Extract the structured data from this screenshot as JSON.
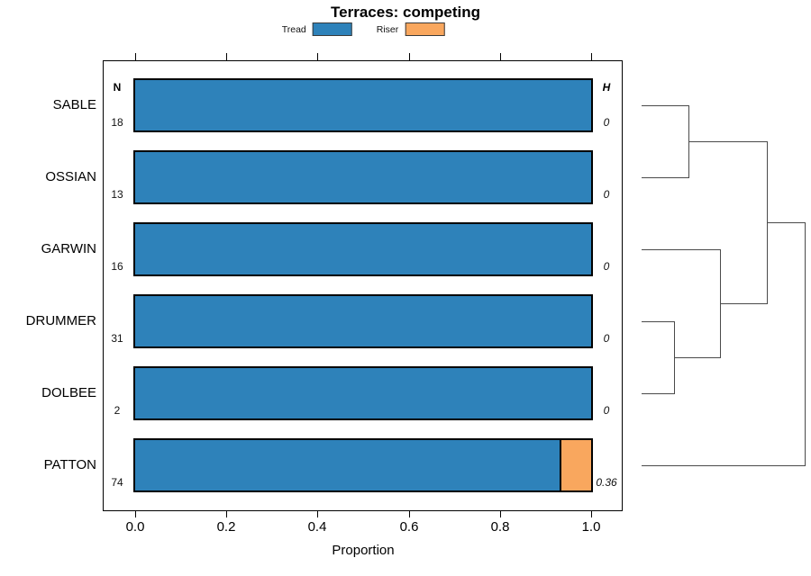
{
  "title": "Terraces: competing",
  "legend": {
    "items": [
      {
        "label": "Tread",
        "color": "#2e82ba"
      },
      {
        "label": "Riser",
        "color": "#f9a75e"
      }
    ]
  },
  "columns": {
    "n_header": "N",
    "h_header": "H"
  },
  "xaxis": {
    "label": "Proportion",
    "ticks": [
      "0.0",
      "0.2",
      "0.4",
      "0.6",
      "0.8",
      "1.0"
    ]
  },
  "chart_data": {
    "type": "bar",
    "orientation": "horizontal",
    "stacked": true,
    "title": "Terraces: competing",
    "categories": [
      "SABLE",
      "OSSIAN",
      "GARWIN",
      "DRUMMER",
      "DOLBEE",
      "PATTON"
    ],
    "series": [
      {
        "name": "Tread",
        "color": "#2e82ba",
        "values": [
          1.0,
          1.0,
          1.0,
          1.0,
          1.0,
          0.93
        ]
      },
      {
        "name": "Riser",
        "color": "#f9a75e",
        "values": [
          0.0,
          0.0,
          0.0,
          0.0,
          0.0,
          0.07
        ]
      }
    ],
    "n_values": [
      18,
      13,
      16,
      31,
      2,
      74
    ],
    "h_values": [
      "0",
      "0",
      "0",
      "0",
      "0",
      "0.36"
    ],
    "xlabel": "Proportion",
    "xlim": [
      0,
      1
    ],
    "xticks": [
      0.0,
      0.2,
      0.4,
      0.6,
      0.8,
      1.0
    ],
    "grid": false,
    "legend_position": "top",
    "dendrogram": {
      "leaves": [
        "SABLE",
        "OSSIAN",
        "GARWIN",
        "DRUMMER",
        "DOLBEE",
        "PATTON"
      ],
      "merges": [
        {
          "id": "m1",
          "a": "SABLE",
          "b": "OSSIAN",
          "height": 0.287
        },
        {
          "id": "m2",
          "a": "DRUMMER",
          "b": "DOLBEE",
          "height": 0.199
        },
        {
          "id": "m3",
          "a": "GARWIN",
          "b": "m2",
          "height": 0.481
        },
        {
          "id": "m4",
          "a": "m1",
          "b": "m3",
          "height": 0.768
        },
        {
          "id": "m5",
          "a": "m4",
          "b": "PATTON",
          "height": 1.0
        }
      ]
    }
  }
}
